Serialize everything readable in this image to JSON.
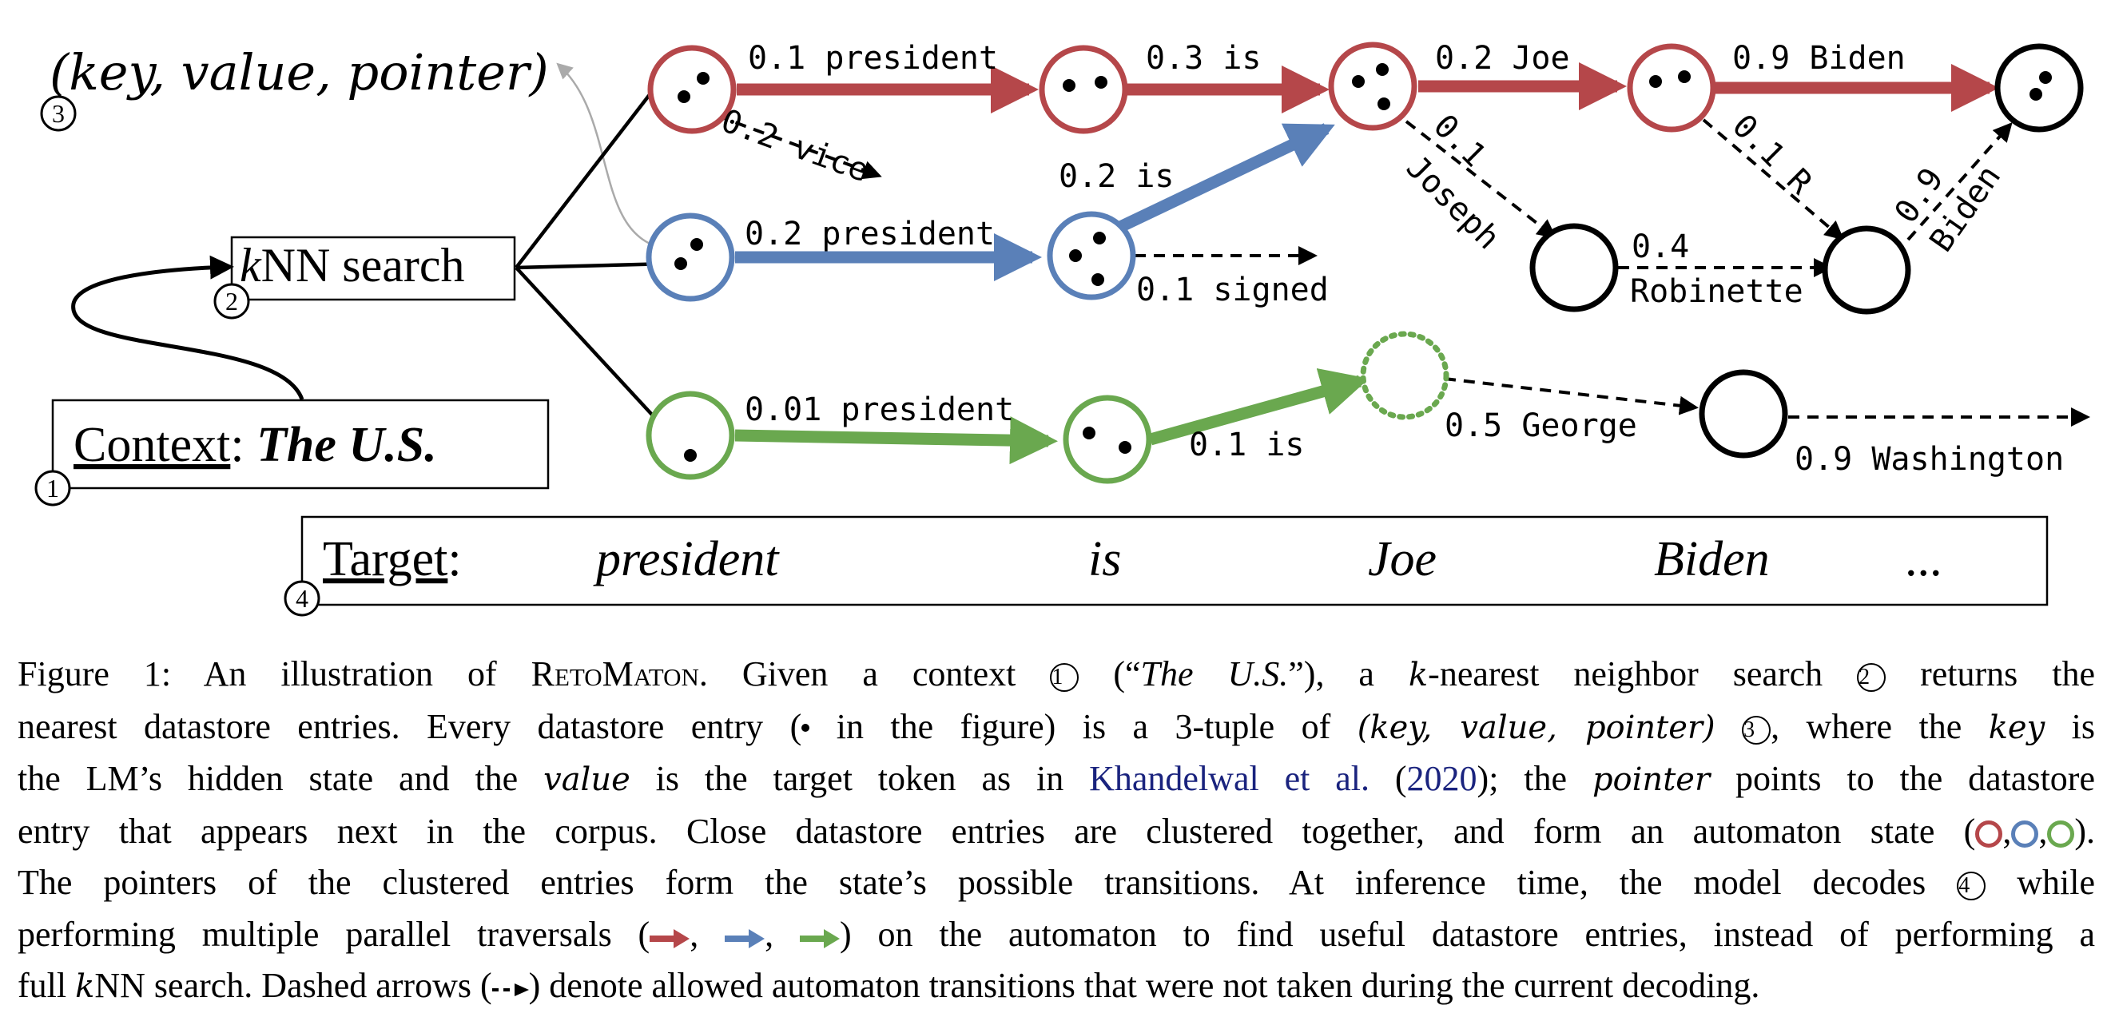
{
  "colors": {
    "red": "#b5474a",
    "blue": "#5a80b8",
    "green": "#6aa84f",
    "black": "#000000",
    "gray": "#aaaaaa",
    "link": "#1a237e"
  },
  "diagram": {
    "key_value_pointer": "(key, value, pointer)",
    "step3": "3",
    "knn_k": "k",
    "knn_rest": "NN search",
    "step2": "2",
    "context_label": "Context",
    "context_colon": ":",
    "context_value": "The U.S.",
    "step1": "1",
    "target_label": "Target",
    "target_colon": ":",
    "step4": "4",
    "target_tokens": [
      "president",
      "is",
      "Joe",
      "Biden",
      "..."
    ],
    "edge_labels": {
      "red_president": "0.1 president",
      "red_vice": "0.2 vice",
      "red_is": "0.3 is",
      "red_joe": "0.2 Joe",
      "red_joseph_num": "0.1",
      "red_joseph": "Joseph",
      "red_biden": "0.9 Biden",
      "red_r": "0.1 R",
      "blue_president": "0.2 president",
      "blue_is": "0.2 is",
      "blue_signed": "0.1 signed",
      "robinette_num": "0.4",
      "robinette": "Robinette",
      "biden2_num": "0.9",
      "biden2": "Biden",
      "green_president": "0.01 president",
      "green_is": "0.1 is",
      "george": "0.5 George",
      "washington": "0.9 Washington"
    }
  },
  "caption": {
    "l1_a": "Figure 1: An illustration of ",
    "l1_name": "RetoMaton",
    "l1_b": ". Given a context ",
    "l1_n1": "1",
    "l1_c": " (“",
    "l1_ctx": "The U.S.",
    "l1_d": "”), a ",
    "l1_k": "k",
    "l1_e": "-nearest neighbor search ",
    "l1_n2": "2",
    "l1_f": " returns the",
    "l2_a": "nearest datastore entries. Every datastore entry (",
    "l2_b": " in the figure) is a 3-tuple of ",
    "l2_tuple": "(key, value, pointer)",
    "l2_n3": "3",
    "l2_c": ", where the ",
    "l2_key": "key",
    "l2_d": " is",
    "l3_a": "the LM’s hidden state and the ",
    "l3_value": "value",
    "l3_b": " is the target token as in ",
    "l3_cite": "Khandelwal et al.",
    "l3_paren_open": " (",
    "l3_year": "2020",
    "l3_paren_close": ")",
    "l3_c": "; the ",
    "l3_pointer": "pointer",
    "l3_d": " points to the datastore",
    "l4_a": "entry that appears next in the corpus. Close datastore entries are clustered together, and form an automaton state (",
    "l4_sep": ",",
    "l4_end": ").",
    "l5_a": "The pointers of the clustered entries form the state’s possible transitions. At inference time, the model decodes ",
    "l5_n4": "4",
    "l5_b": " while",
    "l6_a": "performing multiple parallel traversals (",
    "l6_sep": ", ",
    "l6_b": ") on the automaton to find useful datastore entries, instead of performing a",
    "l7_a": "full ",
    "l7_k": "k",
    "l7_b": "NN search. Dashed arrows (",
    "l7_c": ") denote allowed automaton transitions that were not taken during the current decoding."
  }
}
